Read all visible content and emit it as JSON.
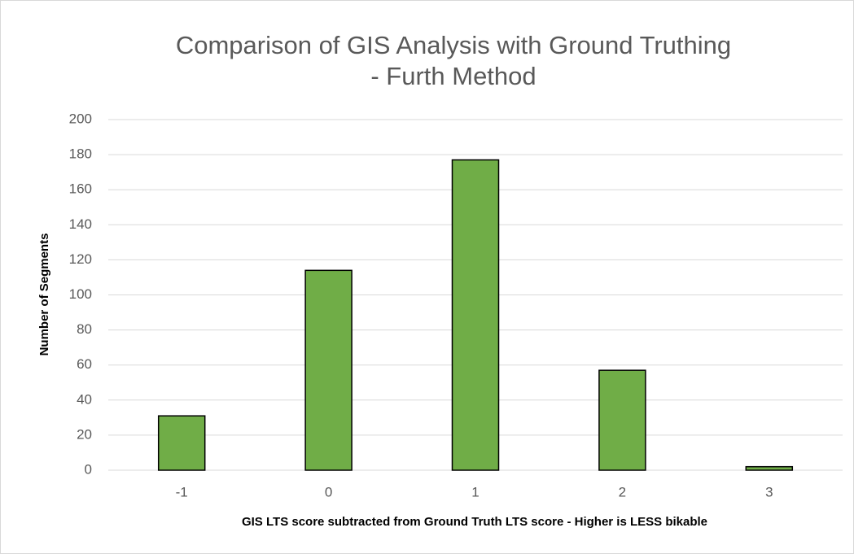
{
  "chart_data": {
    "type": "bar",
    "title": [
      "Comparison of GIS Analysis with Ground Truthing",
      "- Furth Method"
    ],
    "x_label": "GIS LTS score subtracted from Ground Truth LTS score - Higher is LESS bikable",
    "y_label": "Number of Segments",
    "categories": [
      "-1",
      "0",
      "1",
      "2",
      "3"
    ],
    "values": [
      31,
      114,
      177,
      57,
      2
    ],
    "color": "#70ad47",
    "ylim": [
      0,
      200
    ],
    "yticks": [
      0,
      20,
      40,
      60,
      80,
      100,
      120,
      140,
      160,
      180,
      200
    ],
    "grid": true
  }
}
